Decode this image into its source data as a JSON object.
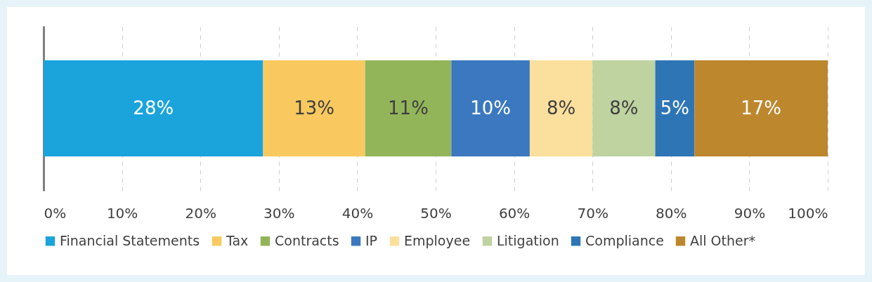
{
  "chart_data": {
    "type": "bar",
    "orientation": "horizontal",
    "stacked": true,
    "categories": [
      null
    ],
    "series": [
      {
        "name": "Financial Statements",
        "color": "#1ba3dc",
        "values": [
          28
        ],
        "value_labels": [
          "28%"
        ]
      },
      {
        "name": "Tax",
        "color": "#f9c95f",
        "values": [
          13
        ],
        "value_labels": [
          "13%"
        ]
      },
      {
        "name": "Contracts",
        "color": "#93b55a",
        "values": [
          11
        ],
        "value_labels": [
          "11%"
        ]
      },
      {
        "name": "IP",
        "color": "#3b78c0",
        "values": [
          10
        ],
        "value_labels": [
          "10%"
        ]
      },
      {
        "name": "Employee",
        "color": "#fbdf9c",
        "values": [
          8
        ],
        "value_labels": [
          "8%"
        ]
      },
      {
        "name": "Litigation",
        "color": "#bed3a0",
        "values": [
          8
        ],
        "value_labels": [
          "8%"
        ]
      },
      {
        "name": "Compliance",
        "color": "#2e75b6",
        "values": [
          5
        ],
        "value_labels": [
          "5%"
        ]
      },
      {
        "name": "All Other*",
        "color": "#bd872e",
        "values": [
          17
        ],
        "value_labels": [
          "17%"
        ]
      }
    ],
    "xlim": [
      0,
      100
    ],
    "xticks": [
      {
        "value": 0,
        "label": "0%"
      },
      {
        "value": 10,
        "label": "10%"
      },
      {
        "value": 20,
        "label": "20%"
      },
      {
        "value": 30,
        "label": "30%"
      },
      {
        "value": 40,
        "label": "40%"
      },
      {
        "value": 50,
        "label": "50%"
      },
      {
        "value": 60,
        "label": "60%"
      },
      {
        "value": 70,
        "label": "70%"
      },
      {
        "value": 80,
        "label": "80%"
      },
      {
        "value": 90,
        "label": "90%"
      },
      {
        "value": 100,
        "label": "100%"
      }
    ],
    "grid": "x",
    "legend": "bottom"
  }
}
